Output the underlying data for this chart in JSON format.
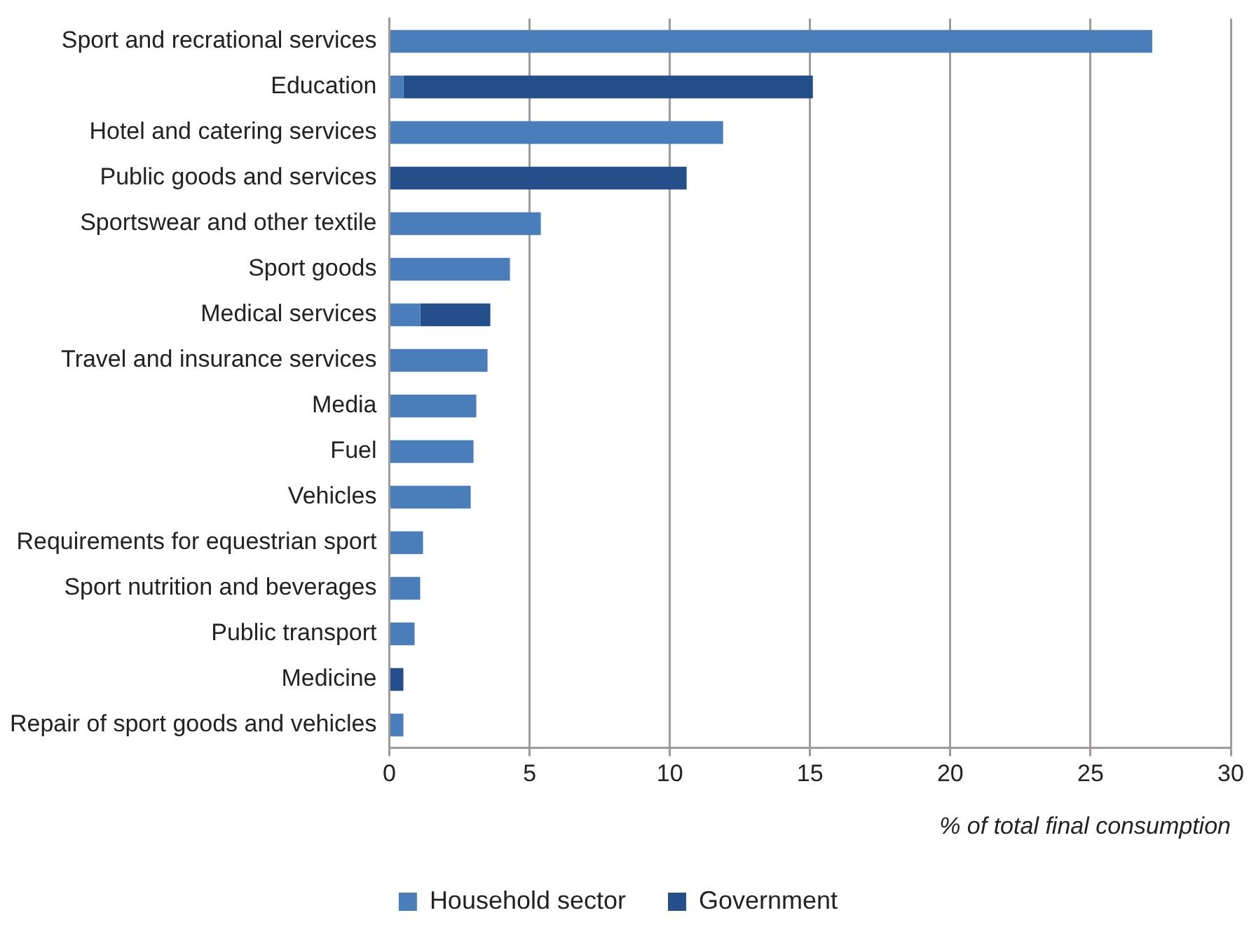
{
  "chart_data": {
    "type": "bar",
    "orientation": "horizontal",
    "stacked": true,
    "categories": [
      "Sport and recrational services",
      "Education",
      "Hotel and catering services",
      "Public goods and services",
      "Sportswear and other textile",
      "Sport goods",
      "Medical services",
      "Travel and insurance services",
      "Media",
      "Fuel",
      "Vehicles",
      "Requirements for equestrian sport",
      "Sport nutrition and beverages",
      "Public transport",
      "Medicine",
      "Repair of sport goods and vehicles"
    ],
    "series": [
      {
        "name": "Household sector",
        "color": "#4a7ebb",
        "values": [
          27.2,
          0.5,
          11.9,
          null,
          5.4,
          4.3,
          1.1,
          3.5,
          3.1,
          3.0,
          2.9,
          1.2,
          1.1,
          0.9,
          null,
          0.5
        ]
      },
      {
        "name": "Government",
        "color": "#254f8a",
        "values": [
          null,
          14.6,
          null,
          10.6,
          null,
          null,
          2.5,
          null,
          null,
          null,
          null,
          null,
          null,
          null,
          0.5,
          null
        ]
      }
    ],
    "xlim": [
      0,
      30
    ],
    "xticks": [
      0,
      5,
      10,
      15,
      20,
      25,
      30
    ],
    "xlabel": "% of total final consumption",
    "grid": "x",
    "legend": "bottom"
  }
}
